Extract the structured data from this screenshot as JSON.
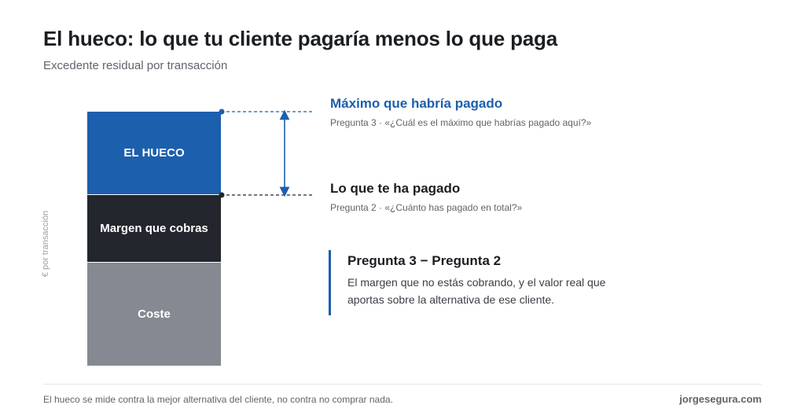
{
  "header": {
    "title": "El hueco: lo que tu cliente pagaría menos lo que paga",
    "subtitle": "Excedente residual por transacción"
  },
  "axis": {
    "y_label": "€ por transacción"
  },
  "bar": {
    "segments": [
      {
        "label": "EL HUECO",
        "color": "#1c5fad"
      },
      {
        "label": "Margen que cobras",
        "color": "#23272d"
      },
      {
        "label": "Coste",
        "color": "#858a92"
      }
    ]
  },
  "markers": {
    "max": {
      "title": "Máximo que habría pagado",
      "subtitle": "Pregunta 3 · «¿Cuál es el máximo que habrías pagado aquí?»"
    },
    "paid": {
      "title": "Lo que te ha pagado",
      "subtitle": "Pregunta 2 · «¿Cuánto has pagado en total?»"
    }
  },
  "callout": {
    "title": "Pregunta 3 − Pregunta 2",
    "body": "El margen que no estás cobrando, y el valor real que aportas sobre la alternativa de ese cliente."
  },
  "footer": {
    "note": "El hueco se mide contra la mejor alternativa del cliente, no contra no comprar nada.",
    "site": "jorgesegura.com"
  },
  "colors": {
    "accent": "#1c5fad",
    "dark": "#23272d",
    "gray": "#858a92"
  }
}
